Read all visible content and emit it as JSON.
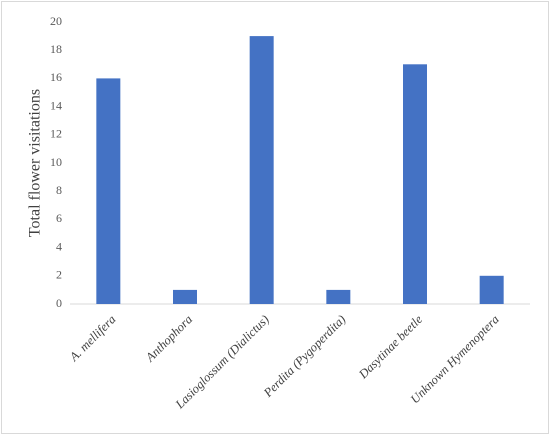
{
  "chart_data": {
    "type": "bar",
    "y_label": "Total flower visitations",
    "categories": [
      "A. mellifera",
      "Anthophora",
      "Lasioglossum (Dialictus)",
      "Perdita (Pygoperdita)",
      "Dasytinae beetle",
      "Unknown Hymenoptera"
    ],
    "values": [
      16,
      1,
      19,
      1,
      17,
      2
    ],
    "color": "#4472c4",
    "ylim": [
      0,
      20
    ],
    "yticks": [
      0,
      2,
      4,
      6,
      8,
      10,
      12,
      14,
      16,
      18,
      20
    ]
  }
}
